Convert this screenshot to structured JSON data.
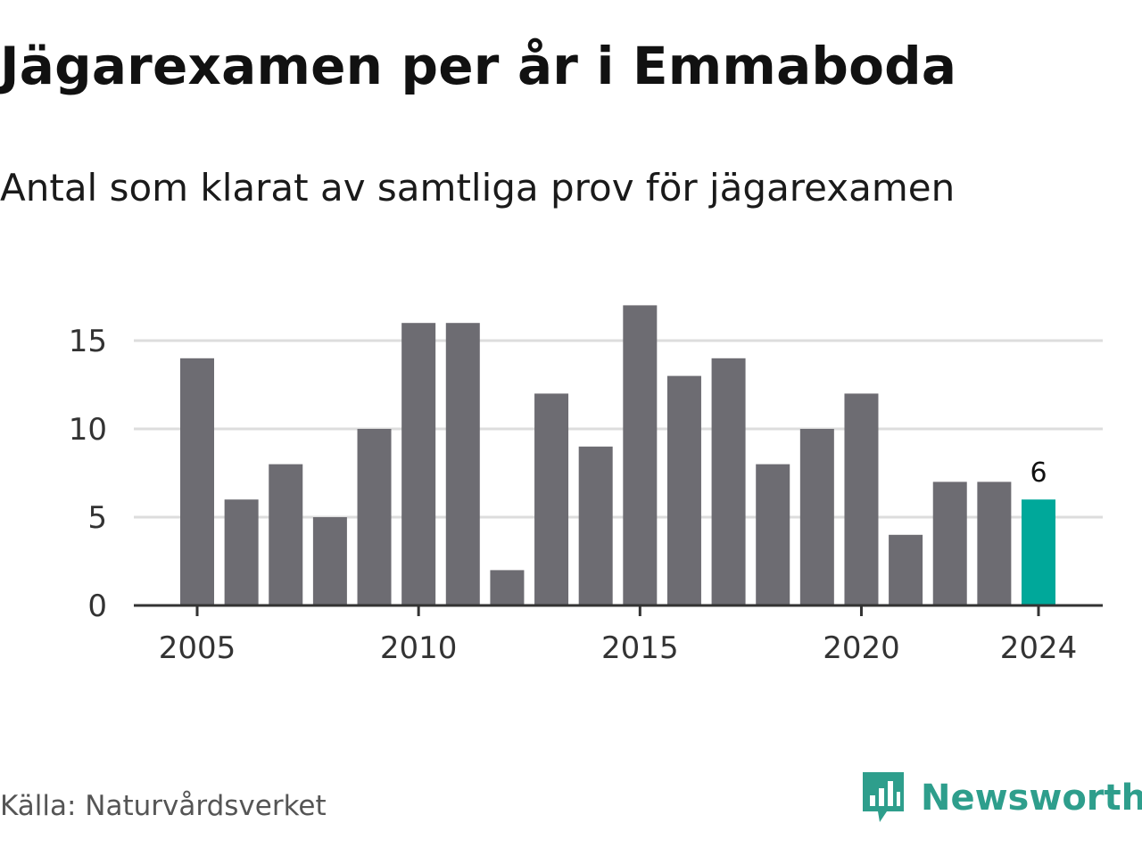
{
  "title": "Jägarexamen per år i Emmaboda",
  "subtitle": "Antal som klarat av samtliga prov för jägarexamen",
  "source": "Källa: Naturvårdsverket",
  "brand": {
    "name": "Newsworthy",
    "icon": "newsworthy-logo-icon",
    "color": "#2e9e8c"
  },
  "colors": {
    "bar": "#6d6c72",
    "highlight": "#00a89a",
    "grid": "#dddddd",
    "axis": "#333333"
  },
  "chart_data": {
    "type": "bar",
    "categories": [
      "2005",
      "2006",
      "2007",
      "2008",
      "2009",
      "2010",
      "2011",
      "2012",
      "2013",
      "2014",
      "2015",
      "2016",
      "2017",
      "2018",
      "2019",
      "2020",
      "2021",
      "2022",
      "2023",
      "2024"
    ],
    "values": [
      14,
      6,
      8,
      5,
      10,
      16,
      16,
      2,
      12,
      9,
      17,
      13,
      14,
      8,
      10,
      12,
      4,
      7,
      7,
      6
    ],
    "highlight_index": 19,
    "data_labels": [
      {
        "index": 19,
        "text": "6"
      }
    ],
    "xticks": [
      "2005",
      "2010",
      "2015",
      "2020",
      "2024"
    ],
    "yticks": [
      0,
      5,
      10,
      15
    ],
    "ylim": [
      0,
      17
    ],
    "grid": true,
    "xlabel": "",
    "ylabel": ""
  }
}
